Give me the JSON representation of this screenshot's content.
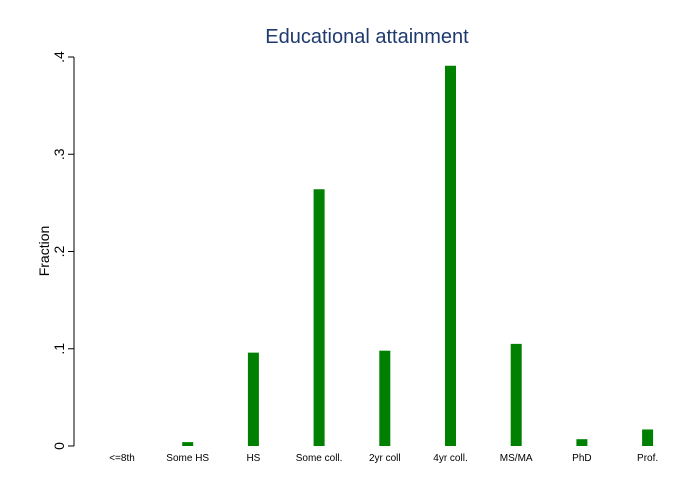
{
  "chart_data": {
    "type": "bar",
    "title": "Educational attainment",
    "xlabel": "",
    "ylabel": "Fraction",
    "ylim": [
      0,
      0.4
    ],
    "yticks": [
      0,
      0.1,
      0.2,
      0.3,
      0.4
    ],
    "ytick_labels": [
      "0",
      ".1",
      ".2",
      ".3",
      ".4"
    ],
    "categories": [
      "<=8th",
      "Some HS",
      "HS",
      "Some coll.",
      "2yr coll",
      "4yr coll.",
      "MS/MA",
      "PhD",
      "Prof."
    ],
    "values": [
      0.0,
      0.004,
      0.096,
      0.264,
      0.098,
      0.391,
      0.105,
      0.007,
      0.017
    ],
    "bar_color": "#008000",
    "grid": false,
    "legend": "none"
  }
}
